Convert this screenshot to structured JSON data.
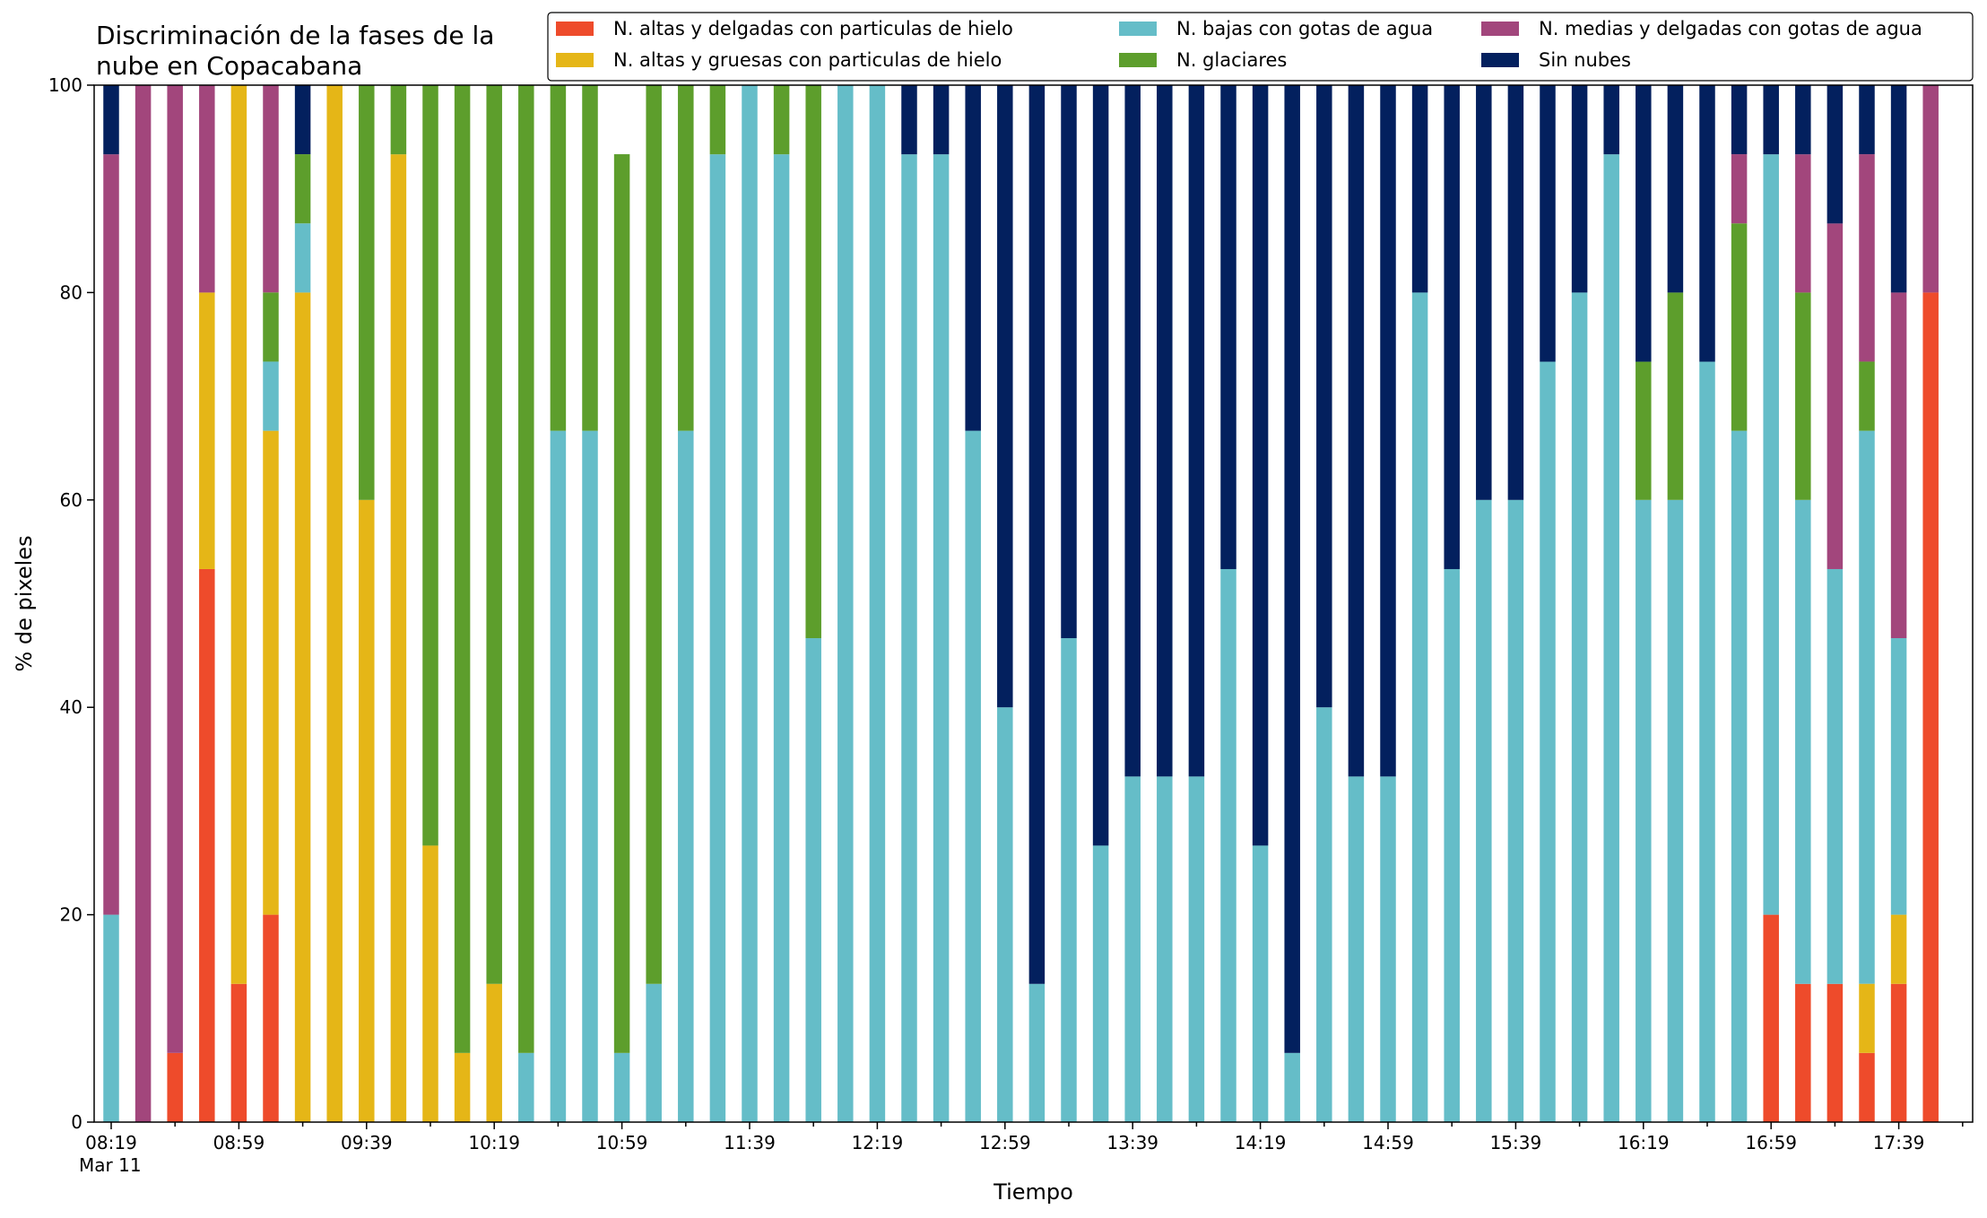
{
  "chart_data": {
    "type": "bar",
    "stacked": true,
    "title": "Discriminación de la fases de la\nnube en Copacabana",
    "xlabel": "Tiempo",
    "ylabel": "% de pixeles",
    "ylim": [
      0,
      100
    ],
    "yticks": [
      0,
      20,
      40,
      60,
      80,
      100
    ],
    "legend_position": "top-right",
    "grid": false,
    "x_start_time": "08:19",
    "x_interval_minutes": 10,
    "x_tick_labels": [
      "08:19\nMar 11",
      "08:59",
      "09:39",
      "10:19",
      "10:59",
      "11:39",
      "12:19",
      "12:59",
      "13:39",
      "14:19",
      "14:59",
      "15:39",
      "16:19",
      "16:59",
      "17:39"
    ],
    "categories": [
      "08:19",
      "08:29",
      "08:39",
      "08:49",
      "08:59",
      "09:09",
      "09:19",
      "09:29",
      "09:39",
      "09:49",
      "09:59",
      "10:09",
      "10:19",
      "10:29",
      "10:39",
      "10:49",
      "10:59",
      "11:09",
      "11:19",
      "11:29",
      "11:39",
      "11:49",
      "11:59",
      "12:09",
      "12:19",
      "12:29",
      "12:39",
      "12:49",
      "12:59",
      "13:09",
      "13:19",
      "13:29",
      "13:39",
      "13:49",
      "13:59",
      "14:09",
      "14:19",
      "14:29",
      "14:39",
      "14:49",
      "14:59",
      "15:09",
      "15:19",
      "15:29",
      "15:39",
      "15:49",
      "15:59",
      "16:09",
      "16:19",
      "16:29",
      "16:39",
      "16:49",
      "16:59",
      "17:09",
      "17:19",
      "17:29",
      "17:39",
      "17:49"
    ],
    "series": [
      {
        "name": "N. altas y delgadas con particulas de hielo",
        "color": "#ee4b2b",
        "values": [
          0,
          0,
          6.67,
          53.33,
          13.33,
          20,
          0,
          0,
          0,
          0,
          0,
          0,
          0,
          0,
          0,
          0,
          0,
          0,
          0,
          0,
          0,
          0,
          0,
          0,
          0,
          0,
          0,
          0,
          0,
          0,
          0,
          0,
          0,
          0,
          0,
          0,
          0,
          0,
          0,
          0,
          0,
          0,
          0,
          0,
          0,
          0,
          0,
          0,
          0,
          0,
          0,
          0,
          20,
          13.33,
          13.33,
          6.67,
          13.33,
          80
        ]
      },
      {
        "name": "N. altas y gruesas con particulas de hielo",
        "color": "#e5b617",
        "values": [
          0,
          0,
          0,
          26.67,
          86.67,
          46.67,
          80,
          100,
          60,
          93.33,
          26.67,
          6.67,
          13.33,
          0,
          0,
          0,
          0,
          0,
          0,
          0,
          0,
          0,
          0,
          0,
          0,
          0,
          0,
          0,
          0,
          0,
          0,
          0,
          0,
          0,
          0,
          0,
          0,
          0,
          0,
          0,
          0,
          0,
          0,
          0,
          0,
          0,
          0,
          0,
          0,
          0,
          0,
          0,
          0,
          0,
          0,
          6.67,
          6.67,
          0
        ]
      },
      {
        "name": "N. bajas con gotas de agua",
        "color": "#65bdc8",
        "values": [
          20,
          0,
          0,
          0,
          0,
          6.67,
          6.67,
          0,
          0,
          0,
          0,
          0,
          0,
          6.67,
          66.67,
          66.67,
          6.67,
          13.33,
          66.67,
          93.33,
          100,
          93.33,
          46.67,
          100,
          100,
          93.33,
          93.33,
          66.67,
          40,
          13.33,
          46.67,
          26.67,
          33.33,
          33.33,
          33.33,
          53.33,
          26.67,
          6.67,
          40,
          33.33,
          33.33,
          80,
          53.33,
          60,
          60,
          73.33,
          80,
          93.33,
          60,
          60,
          73.33,
          66.67,
          73.33,
          46.67,
          40,
          53.33,
          26.67,
          0
        ]
      },
      {
        "name": "N. glaciares",
        "color": "#5d9e2c",
        "values": [
          0,
          0,
          0,
          0,
          0,
          6.67,
          6.67,
          0,
          40,
          6.67,
          73.33,
          93.33,
          86.67,
          93.33,
          33.33,
          33.33,
          86.67,
          86.67,
          33.33,
          6.67,
          0,
          6.67,
          53.33,
          0,
          0,
          0,
          0,
          0,
          0,
          0,
          0,
          0,
          0,
          0,
          0,
          0,
          0,
          0,
          0,
          0,
          0,
          0,
          0,
          0,
          0,
          0,
          0,
          0,
          13.33,
          20,
          0,
          20,
          0,
          20,
          0,
          6.67,
          0,
          0
        ]
      },
      {
        "name": "N. medias y delgadas con gotas de agua",
        "color": "#a2467c",
        "values": [
          73.33,
          100,
          93.33,
          20,
          0,
          20,
          0,
          0,
          0,
          0,
          0,
          0,
          0,
          0,
          0,
          0,
          0,
          0,
          0,
          0,
          0,
          0,
          0,
          0,
          0,
          0,
          0,
          0,
          0,
          0,
          0,
          0,
          0,
          0,
          0,
          0,
          0,
          0,
          0,
          0,
          0,
          0,
          0,
          0,
          0,
          0,
          0,
          0,
          0,
          0,
          0,
          6.67,
          0,
          13.33,
          33.33,
          20,
          33.33,
          20
        ]
      },
      {
        "name": "Sin nubes",
        "color": "#03205e",
        "values": [
          6.67,
          0,
          0,
          0,
          0,
          0,
          6.67,
          0,
          0,
          0,
          0,
          0,
          0,
          0,
          0,
          0,
          0,
          0,
          0,
          0,
          0,
          0,
          0,
          0,
          0,
          6.67,
          6.67,
          33.33,
          60,
          86.67,
          53.33,
          73.33,
          66.67,
          66.67,
          66.67,
          46.67,
          73.33,
          93.33,
          60,
          66.67,
          66.67,
          20,
          46.67,
          40,
          40,
          26.67,
          20,
          6.67,
          26.67,
          20,
          26.67,
          6.67,
          6.67,
          6.67,
          13.33,
          6.67,
          20,
          0
        ]
      }
    ]
  }
}
